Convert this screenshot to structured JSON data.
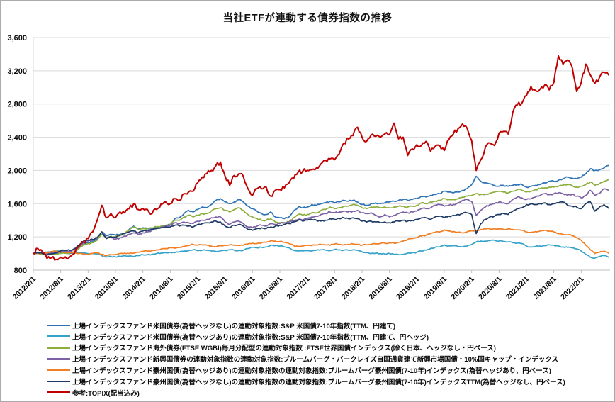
{
  "page": {
    "title": "当社ETFが連動する債券指数の推移"
  },
  "chart_data": {
    "type": "line",
    "title": "当社ETFが連動する債券指数の推移",
    "xlabel": "",
    "ylabel": "",
    "ylim": [
      800,
      3600
    ],
    "y_tick_step": 400,
    "y_tick_labels": [
      "800",
      "1,200",
      "1,600",
      "2,000",
      "2,400",
      "2,800",
      "3,200",
      "3,600"
    ],
    "x_tick_labels": [
      "2012/2/1",
      "2012/8/1",
      "2013/2/1",
      "2013/8/1",
      "2014/2/1",
      "2014/8/1",
      "2015/2/1",
      "2015/8/1",
      "2016/2/1",
      "2016/8/1",
      "2017/2/1",
      "2017/8/1",
      "2018/2/1",
      "2018/8/1",
      "2019/2/1",
      "2019/8/1",
      "2020/2/1",
      "2020/8/1",
      "2021/2/1",
      "2021/8/1",
      "2022/2/1"
    ],
    "x_start_month": "2012/2",
    "x_months_per_point": 1,
    "x_ticks_every_points": 6,
    "grid": true,
    "legend_position": "bottom-left",
    "axis_color": "#bfbfbf",
    "grid_color": "#d9d9d9",
    "series": [
      {
        "name": "上場インデックスファンド米国債券(為替ヘッジなし)の連動対象指数:S&P 米国債7-10年指数(TTM、円建て)",
        "color": "#2E74B5",
        "values": [
          1000,
          1005,
          1000,
          990,
          1005,
          1000,
          1010,
          1005,
          1000,
          1020,
          1060,
          1110,
          1130,
          1150,
          1180,
          1260,
          1215,
          1230,
          1220,
          1230,
          1240,
          1290,
          1330,
          1300,
          1310,
          1300,
          1300,
          1310,
          1320,
          1330,
          1350,
          1420,
          1430,
          1480,
          1520,
          1500,
          1530,
          1560,
          1550,
          1590,
          1640,
          1660,
          1620,
          1600,
          1620,
          1650,
          1620,
          1570,
          1540,
          1510,
          1480,
          1470,
          1500,
          1440,
          1430,
          1420,
          1440,
          1510,
          1560,
          1550,
          1560,
          1590,
          1580,
          1600,
          1610,
          1630,
          1610,
          1620,
          1640,
          1630,
          1640,
          1620,
          1590,
          1580,
          1600,
          1610,
          1600,
          1610,
          1620,
          1630,
          1640,
          1650,
          1640,
          1650,
          1660,
          1690,
          1680,
          1700,
          1710,
          1720,
          1750,
          1740,
          1730,
          1740,
          1760,
          1780,
          1830,
          1930,
          1870,
          1850,
          1840,
          1820,
          1810,
          1820,
          1810,
          1820,
          1830,
          1830,
          1800,
          1810,
          1820,
          1830,
          1850,
          1870,
          1870,
          1880,
          1900,
          1920,
          1910,
          1900,
          1920,
          1960,
          2020,
          2000,
          2010,
          2030,
          2060
        ]
      },
      {
        "name": "上場インデックスファンド米国債券(為替ヘッジあり)の連動対象指数:S&P 米国債7-10年指数(TTM、円建て、円ヘッジ)",
        "color": "#35A3C9",
        "values": [
          1000,
          1005,
          1010,
          1015,
          1025,
          1030,
          1030,
          1025,
          1020,
          1015,
          1010,
          1005,
          1000,
          1000,
          995,
          975,
          960,
          965,
          960,
          965,
          975,
          970,
          965,
          975,
          985,
          985,
          990,
          1000,
          1005,
          1010,
          1015,
          1010,
          1020,
          1030,
          1035,
          1045,
          1035,
          1040,
          1040,
          1030,
          1025,
          1035,
          1040,
          1045,
          1040,
          1035,
          1040,
          1060,
          1075,
          1070,
          1075,
          1080,
          1100,
          1095,
          1090,
          1080,
          1070,
          1040,
          1030,
          1030,
          1035,
          1030,
          1040,
          1045,
          1040,
          1035,
          1050,
          1045,
          1040,
          1040,
          1045,
          1040,
          1020,
          1010,
          1000,
          1005,
          1000,
          995,
          1000,
          990,
          985,
          990,
          1005,
          1010,
          1015,
          1030,
          1040,
          1060,
          1075,
          1080,
          1105,
          1090,
          1095,
          1085,
          1080,
          1090,
          1110,
          1140,
          1150,
          1150,
          1155,
          1160,
          1150,
          1145,
          1140,
          1130,
          1125,
          1120,
          1090,
          1080,
          1085,
          1090,
          1095,
          1105,
          1100,
          1090,
          1080,
          1075,
          1070,
          1055,
          1030,
          990,
          955,
          945,
          965,
          975,
          955
        ]
      },
      {
        "name": "上場インデックスファンド海外債券(FTSE WGBI)毎月分配型の連動対象指数 :FTSE世界国債インデックス(除く日本、ヘッジなし・円ベース)",
        "color": "#8CAE3C",
        "values": [
          1000,
          1005,
          995,
          985,
          995,
          990,
          1000,
          1005,
          1005,
          1020,
          1060,
          1110,
          1120,
          1130,
          1160,
          1230,
          1190,
          1210,
          1200,
          1220,
          1240,
          1280,
          1320,
          1290,
          1300,
          1300,
          1310,
          1320,
          1330,
          1340,
          1350,
          1400,
          1400,
          1440,
          1460,
          1440,
          1460,
          1480,
          1480,
          1510,
          1540,
          1550,
          1520,
          1500,
          1530,
          1550,
          1520,
          1470,
          1440,
          1420,
          1400,
          1400,
          1420,
          1380,
          1370,
          1370,
          1380,
          1430,
          1470,
          1460,
          1470,
          1490,
          1490,
          1520,
          1530,
          1560,
          1540,
          1550,
          1570,
          1570,
          1590,
          1580,
          1550,
          1540,
          1560,
          1560,
          1550,
          1560,
          1550,
          1560,
          1570,
          1570,
          1560,
          1570,
          1580,
          1610,
          1600,
          1620,
          1630,
          1640,
          1660,
          1650,
          1650,
          1660,
          1680,
          1690,
          1700,
          1720,
          1710,
          1715,
          1725,
          1740,
          1750,
          1740,
          1730,
          1750,
          1770,
          1760,
          1740,
          1750,
          1770,
          1780,
          1790,
          1800,
          1800,
          1810,
          1820,
          1830,
          1820,
          1800,
          1810,
          1830,
          1860,
          1820,
          1840,
          1870,
          1890
        ]
      },
      {
        "name": "上場インデックスファンド新興国債券の連動対象指数の連動対象指数:ブルームバーグ・バークレイズ自国通貨建て新興市場国債・10%国キャップ・インデックス",
        "color": "#7C61A5",
        "values": [
          1000,
          1010,
          1005,
          995,
          1010,
          1015,
          1025,
          1030,
          1030,
          1045,
          1080,
          1130,
          1150,
          1160,
          1190,
          1260,
          1180,
          1190,
          1170,
          1190,
          1210,
          1230,
          1250,
          1230,
          1250,
          1260,
          1280,
          1300,
          1320,
          1330,
          1340,
          1370,
          1360,
          1380,
          1370,
          1360,
          1390,
          1400,
          1410,
          1430,
          1440,
          1440,
          1380,
          1350,
          1380,
          1390,
          1360,
          1320,
          1310,
          1330,
          1340,
          1330,
          1360,
          1350,
          1360,
          1370,
          1380,
          1390,
          1410,
          1400,
          1420,
          1440,
          1450,
          1470,
          1480,
          1500,
          1490,
          1500,
          1510,
          1500,
          1510,
          1520,
          1490,
          1480,
          1490,
          1460,
          1440,
          1470,
          1440,
          1460,
          1480,
          1500,
          1490,
          1500,
          1510,
          1540,
          1540,
          1550,
          1580,
          1590,
          1570,
          1580,
          1590,
          1610,
          1640,
          1650,
          1630,
          1460,
          1520,
          1560,
          1590,
          1600,
          1620,
          1610,
          1600,
          1650,
          1680,
          1670,
          1650,
          1660,
          1680,
          1700,
          1720,
          1710,
          1720,
          1730,
          1720,
          1700,
          1710,
          1690,
          1670,
          1700,
          1760,
          1700,
          1720,
          1780,
          1760
        ]
      },
      {
        "name": "上場インデックスファンド豪州国債(為替ヘッジあり)の連動対象指数の連動対象指数:ブルームバーグ豪州国債(7-10年)インデックス(為替ヘッジあり、円ベース)",
        "color": "#F07F25",
        "values": [
          1000,
          1000,
          1005,
          1010,
          1020,
          1025,
          1020,
          1015,
          1010,
          1005,
          1000,
          995,
          990,
          1000,
          1010,
          990,
          975,
          985,
          990,
          1000,
          1005,
          1000,
          1005,
          1015,
          1025,
          1030,
          1035,
          1045,
          1055,
          1060,
          1070,
          1065,
          1075,
          1085,
          1095,
          1110,
          1100,
          1105,
          1100,
          1090,
          1080,
          1095,
          1100,
          1105,
          1100,
          1095,
          1100,
          1115,
          1125,
          1120,
          1130,
          1135,
          1155,
          1150,
          1145,
          1135,
          1120,
          1095,
          1085,
          1090,
          1100,
          1095,
          1105,
          1110,
          1105,
          1100,
          1115,
          1110,
          1105,
          1110,
          1115,
          1110,
          1100,
          1105,
          1110,
          1115,
          1120,
          1125,
          1130,
          1125,
          1135,
          1150,
          1170,
          1180,
          1190,
          1210,
          1220,
          1240,
          1255,
          1260,
          1285,
          1270,
          1265,
          1255,
          1250,
          1260,
          1275,
          1270,
          1290,
          1295,
          1295,
          1300,
          1295,
          1290,
          1295,
          1290,
          1285,
          1280,
          1260,
          1255,
          1265,
          1270,
          1280,
          1270,
          1260,
          1240,
          1230,
          1225,
          1215,
          1190,
          1160,
          1100,
          1045,
          1000,
          1015,
          1030,
          1005
        ]
      },
      {
        "name": "上場インデックスファンド豪州国債(為替ヘッジなし)の連動対象指数の連動対象指数:ブルームバーグ豪州国債(7-10年)インデックスTTM(為替ヘッジなし、円ベース)",
        "color": "#1F3A64",
        "values": [
          1000,
          1010,
          1000,
          980,
          1000,
          1010,
          1030,
          1040,
          1040,
          1060,
          1100,
          1150,
          1160,
          1170,
          1190,
          1260,
          1180,
          1200,
          1190,
          1220,
          1240,
          1260,
          1270,
          1250,
          1270,
          1280,
          1290,
          1300,
          1310,
          1320,
          1320,
          1340,
          1330,
          1340,
          1330,
          1320,
          1350,
          1360,
          1370,
          1380,
          1390,
          1380,
          1330,
          1310,
          1340,
          1350,
          1330,
          1290,
          1280,
          1300,
          1310,
          1300,
          1320,
          1330,
          1340,
          1350,
          1360,
          1380,
          1400,
          1390,
          1400,
          1410,
          1400,
          1390,
          1400,
          1420,
          1410,
          1420,
          1430,
          1420,
          1430,
          1420,
          1390,
          1380,
          1390,
          1380,
          1370,
          1380,
          1370,
          1380,
          1390,
          1400,
          1390,
          1400,
          1410,
          1430,
          1430,
          1410,
          1440,
          1450,
          1430,
          1450,
          1460,
          1470,
          1480,
          1490,
          1470,
          1240,
          1360,
          1410,
          1440,
          1450,
          1470,
          1480,
          1470,
          1510,
          1540,
          1550,
          1590,
          1600,
          1590,
          1600,
          1610,
          1590,
          1600,
          1610,
          1620,
          1580,
          1570,
          1560,
          1540,
          1600,
          1620,
          1510,
          1560,
          1590,
          1545
        ]
      },
      {
        "name": "参考:TOPIX(配当込み)",
        "color": "#C00000",
        "values": [
          1000,
          1060,
          1020,
          940,
          950,
          930,
          955,
          960,
          960,
          1000,
          1090,
          1140,
          1180,
          1260,
          1400,
          1580,
          1430,
          1480,
          1430,
          1500,
          1490,
          1540,
          1600,
          1530,
          1540,
          1530,
          1480,
          1530,
          1600,
          1620,
          1600,
          1660,
          1640,
          1720,
          1740,
          1750,
          1850,
          1920,
          1960,
          2000,
          2060,
          2100,
          1930,
          1820,
          1940,
          1960,
          1930,
          1780,
          1700,
          1780,
          1780,
          1800,
          1690,
          1760,
          1770,
          1790,
          1850,
          1900,
          1980,
          1990,
          2000,
          2010,
          2030,
          2080,
          2120,
          2140,
          2130,
          2200,
          2330,
          2380,
          2420,
          2520,
          2400,
          2350,
          2430,
          2410,
          2400,
          2440,
          2430,
          2570,
          2380,
          2400,
          2180,
          2260,
          2310,
          2300,
          2350,
          2230,
          2290,
          2300,
          2240,
          2370,
          2440,
          2500,
          2560,
          2510,
          2360,
          2000,
          2130,
          2280,
          2330,
          2300,
          2450,
          2470,
          2440,
          2700,
          2790,
          2810,
          2900,
          3010,
          2960,
          2980,
          3030,
          2970,
          3060,
          3380,
          3280,
          3330,
          3250,
          2950,
          3060,
          3280,
          3150,
          3050,
          3120,
          3180,
          3150
        ]
      }
    ]
  }
}
